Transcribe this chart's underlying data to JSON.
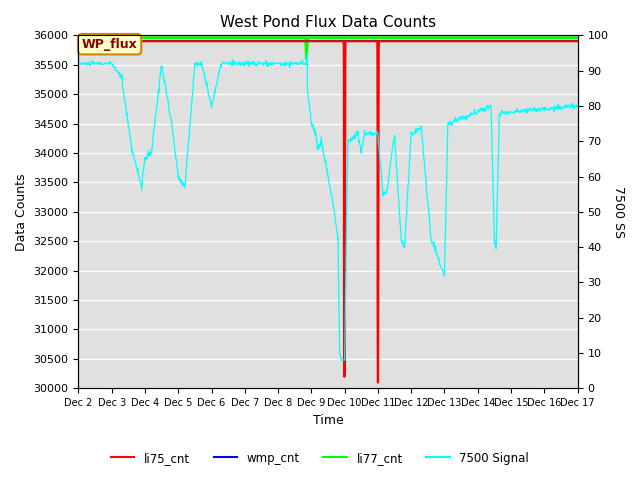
{
  "title": "West Pond Flux Data Counts",
  "xlabel": "Time",
  "ylabel_left": "Data Counts",
  "ylabel_right": "7500 SS",
  "ylim_left": [
    30000,
    36000
  ],
  "ylim_right": [
    0,
    100
  ],
  "bg_color": "#e0e0e0",
  "fig_color": "#ffffff",
  "legend_entries": [
    "li75_cnt",
    "wmp_cnt",
    "li77_cnt",
    "7500 Signal"
  ],
  "legend_colors": [
    "red",
    "blue",
    "green",
    "cyan"
  ],
  "annotation_box_text": "WP_flux",
  "annotation_box_bg": "#ffffcc",
  "annotation_box_border": "red",
  "x_tick_labels": [
    "Dec 2",
    "Dec 3",
    "Dec 4",
    "Dec 5",
    "Dec 6",
    "Dec 7",
    "Dec 8",
    "Dec 9",
    "Dec 10",
    "Dec 11",
    "Dec 12",
    "Dec 13",
    "Dec 14",
    "Dec 15",
    "Dec 16",
    "Dec 17"
  ],
  "x_tick_positions": [
    2,
    3,
    4,
    5,
    6,
    7,
    8,
    9,
    10,
    11,
    12,
    13,
    14,
    15,
    16,
    17
  ],
  "yticks_left": [
    30000,
    30500,
    31000,
    31500,
    32000,
    32500,
    33000,
    33500,
    34000,
    34500,
    35000,
    35500,
    36000
  ],
  "yticks_right": [
    0,
    10,
    20,
    30,
    40,
    50,
    60,
    70,
    80,
    90,
    100
  ]
}
